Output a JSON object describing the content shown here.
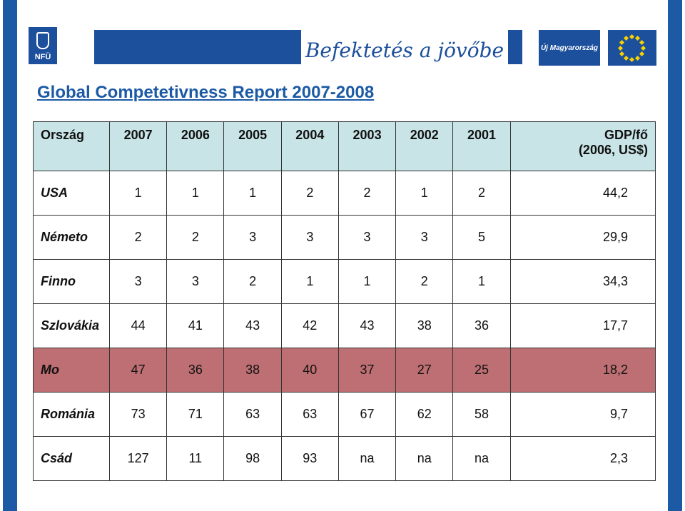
{
  "header": {
    "nfu_logo_text": "NFÜ",
    "slogan": "Befektetés a jövőbe",
    "um_logo_text": "Új Magyarország",
    "colors": {
      "brand_blue": "#1c4f9c",
      "eu_star": "#f7d100"
    }
  },
  "title": "Global Competetivness Report 2007-2008",
  "table": {
    "headers": [
      "Ország",
      "2007",
      "2006",
      "2005",
      "2004",
      "2003",
      "2002",
      "2001"
    ],
    "gdp_header": {
      "line1": "GDP/fő",
      "line2": "(2006, US$)"
    },
    "rows": [
      {
        "country": "USA",
        "values": [
          "1",
          "1",
          "1",
          "2",
          "2",
          "1",
          "2"
        ],
        "gdp": "44,2"
      },
      {
        "country": "Németo",
        "values": [
          "2",
          "2",
          "3",
          "3",
          "3",
          "3",
          "5"
        ],
        "gdp": "29,9"
      },
      {
        "country": "Finno",
        "values": [
          "3",
          "3",
          "2",
          "1",
          "1",
          "2",
          "1"
        ],
        "gdp": "34,3"
      },
      {
        "country": "Szlovákia",
        "values": [
          "44",
          "41",
          "43",
          "42",
          "43",
          "38",
          "36"
        ],
        "gdp": "17,7"
      },
      {
        "country": "Mo",
        "values": [
          "47",
          "36",
          "38",
          "40",
          "37",
          "27",
          "25"
        ],
        "gdp": "18,2"
      },
      {
        "country": "Románia",
        "values": [
          "73",
          "71",
          "63",
          "63",
          "67",
          "62",
          "58"
        ],
        "gdp": "9,7"
      },
      {
        "country": "Csád",
        "values": [
          "127",
          "11",
          "98",
          "93",
          "na",
          "na",
          "na"
        ],
        "gdp": "2,3"
      }
    ],
    "colors": {
      "header_bg": "#c8e4e6",
      "highlight_bg": "#be6f73"
    }
  }
}
